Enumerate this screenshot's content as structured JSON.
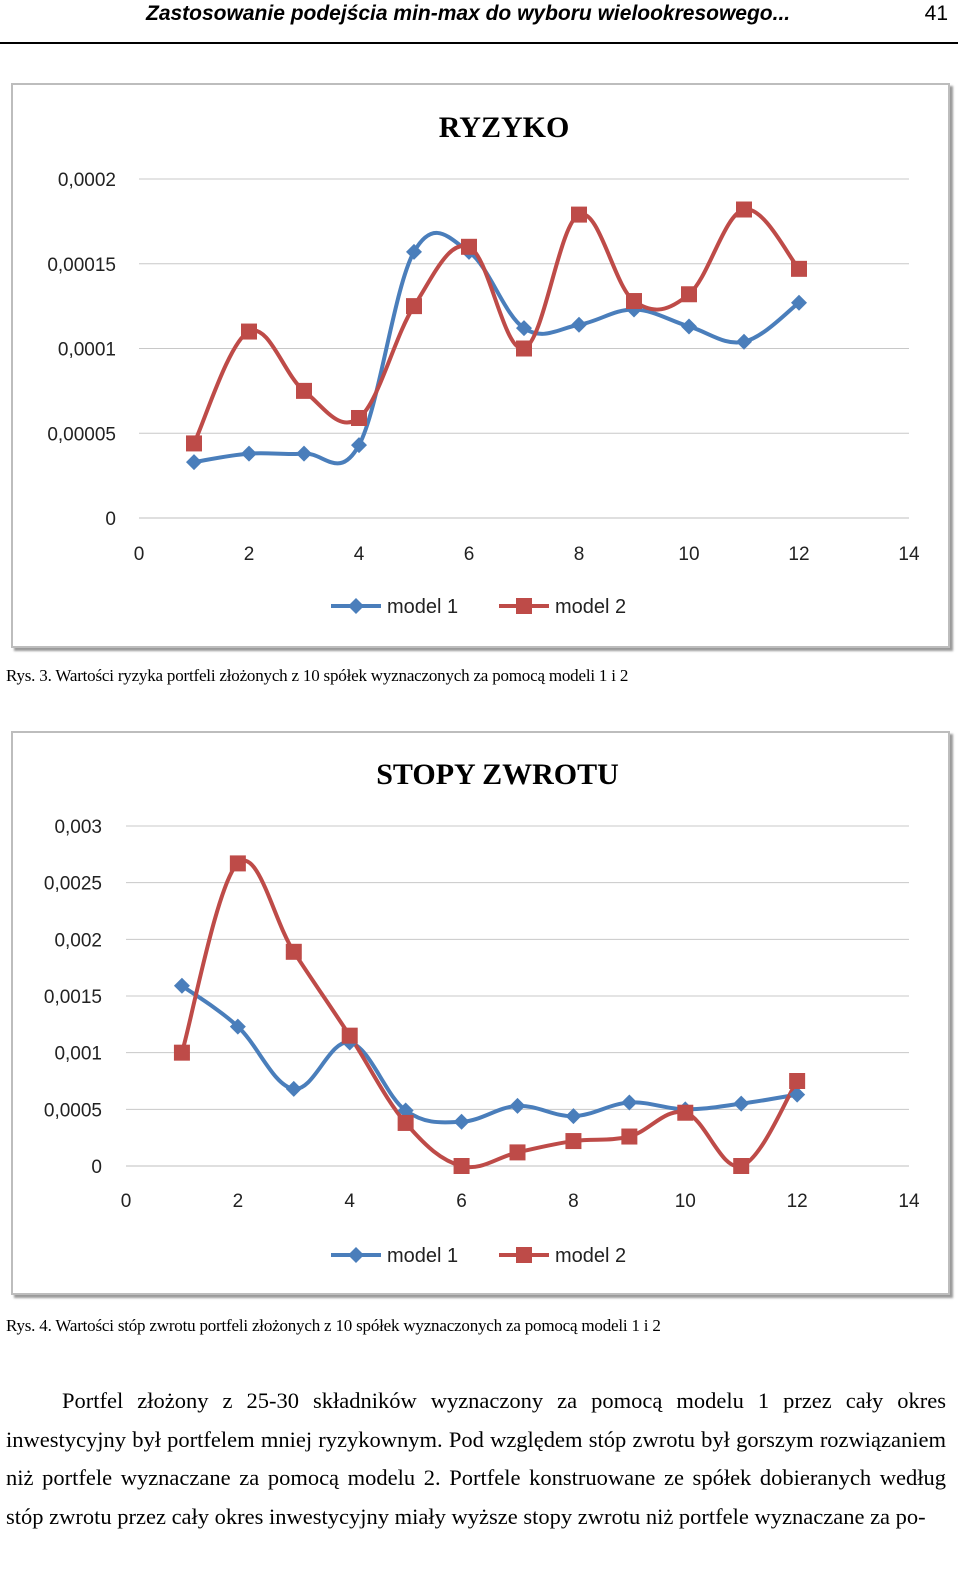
{
  "header": {
    "title": "Zastosowanie podejścia min-max do wyboru wielookresowego...",
    "page_number": "41"
  },
  "figure3": {
    "caption": "Rys. 3. Wartości ryzyka portfeli złożonych z 10 spółek wyznaczonych za pomocą modeli 1 i 2"
  },
  "figure4": {
    "caption": "Rys. 4. Wartości stóp zwrotu portfeli złożonych z 10 spółek wyznaczonych za pomocą modeli 1 i 2"
  },
  "body_text": "Portfel złożony z 25-30 składników wyznaczony za pomocą modelu 1 przez cały okres inwestycyjny był portfelem mniej ryzykownym. Pod względem stóp zwrotu był gorszym rozwiązaniem niż portfele wyznaczane za pomocą modelu 2. Portfele konstruowane ze spółek dobieranych według stóp zwrotu przez cały okres inwestycyjny miały wyższe stopy zwrotu niż portfele wyznaczane za po-",
  "chart_data": [
    {
      "type": "line",
      "title": "RYZYKO",
      "xlim": [
        0,
        14
      ],
      "ylim": [
        0,
        0.0002
      ],
      "x_ticks": [
        "0",
        "2",
        "4",
        "6",
        "8",
        "10",
        "12",
        "14"
      ],
      "y_ticks": [
        "0",
        "0,00005",
        "0,0001",
        "0,00015",
        "0,0002"
      ],
      "grid": "horizontal",
      "legend": "bottom",
      "x": [
        1,
        2,
        3,
        4,
        5,
        6,
        7,
        8,
        9,
        10,
        11,
        12
      ],
      "series": [
        {
          "name": "model 1",
          "color": "#4a7ebb",
          "marker": "diamond",
          "values": [
            3.3e-05,
            3.8e-05,
            3.8e-05,
            4.3e-05,
            0.000157,
            0.000157,
            0.000112,
            0.000114,
            0.000123,
            0.000113,
            0.000104,
            0.000127
          ]
        },
        {
          "name": "model 2",
          "color": "#be4b48",
          "marker": "square",
          "values": [
            4.4e-05,
            0.00011,
            7.5e-05,
            5.9e-05,
            0.000125,
            0.00016,
            0.0001,
            0.000179,
            0.000128,
            0.000132,
            0.000182,
            0.000147
          ]
        }
      ]
    },
    {
      "type": "line",
      "title": "STOPY ZWROTU",
      "xlim": [
        0,
        14
      ],
      "ylim": [
        0,
        0.003
      ],
      "x_ticks": [
        "0",
        "2",
        "4",
        "6",
        "8",
        "10",
        "12",
        "14"
      ],
      "y_ticks": [
        "0",
        "0,0005",
        "0,001",
        "0,0015",
        "0,002",
        "0,0025",
        "0,003"
      ],
      "grid": "horizontal",
      "legend": "bottom",
      "x": [
        1,
        2,
        3,
        4,
        5,
        6,
        7,
        8,
        9,
        10,
        11,
        12
      ],
      "series": [
        {
          "name": "model 1",
          "color": "#4a7ebb",
          "marker": "diamond",
          "values": [
            0.00159,
            0.00123,
            0.00068,
            0.00109,
            0.00049,
            0.00039,
            0.00053,
            0.00044,
            0.00056,
            0.0005,
            0.00055,
            0.00063
          ]
        },
        {
          "name": "model 2",
          "color": "#be4b48",
          "marker": "square",
          "values": [
            0.001,
            0.00267,
            0.00189,
            0.00115,
            0.00038,
            0.0,
            0.00012,
            0.00022,
            0.00026,
            0.00047,
            0.0,
            0.00075
          ]
        }
      ]
    }
  ]
}
